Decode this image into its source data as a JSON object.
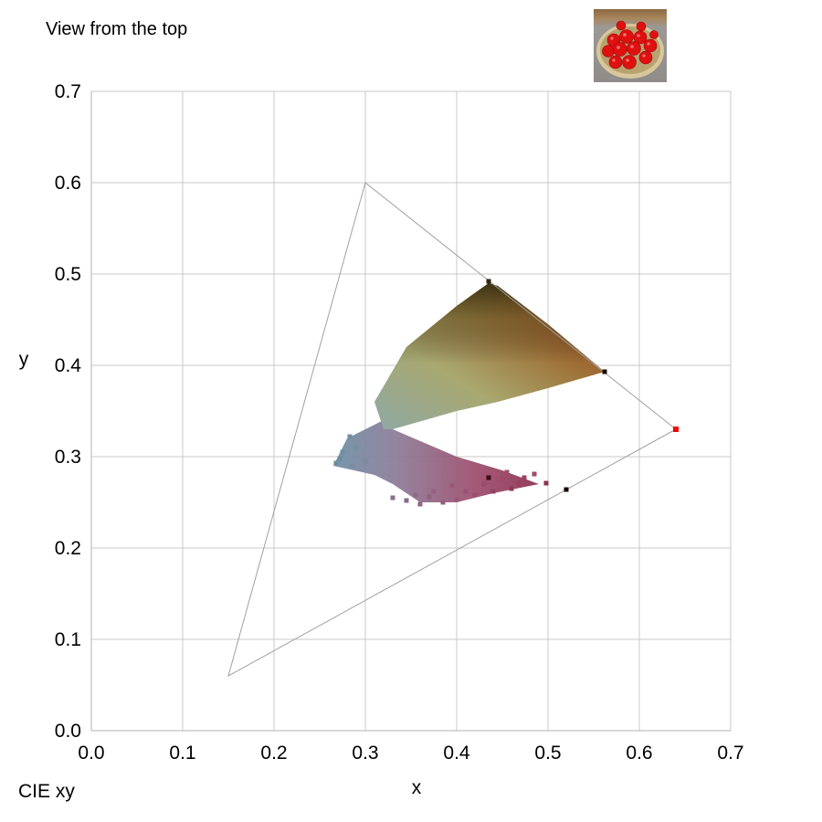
{
  "captions": {
    "view": "View from the top",
    "space": "CIE xy"
  },
  "thumbnail": {
    "icon": "strawberry-tart-thumbnail",
    "colors": {
      "background": "#8f8c89",
      "crust": "#c9b58a",
      "berry": "#e01010",
      "highlight": "#ff8a8a"
    }
  },
  "chart_data": {
    "type": "scatter",
    "title": "",
    "xlabel": "x",
    "ylabel": "y",
    "xlim": [
      0.0,
      0.7
    ],
    "ylim": [
      0.0,
      0.7
    ],
    "xticks": [
      "0.0",
      "0.1",
      "0.2",
      "0.3",
      "0.4",
      "0.5",
      "0.6",
      "0.7"
    ],
    "yticks": [
      "0.0",
      "0.1",
      "0.2",
      "0.3",
      "0.4",
      "0.5",
      "0.6",
      "0.7"
    ],
    "grid": true,
    "gamut_triangle": [
      [
        0.64,
        0.33
      ],
      [
        0.3,
        0.6
      ],
      [
        0.15,
        0.06
      ]
    ],
    "red_primary_marker": {
      "x": 0.64,
      "y": 0.33,
      "color": "#ff0000"
    },
    "upper_region_polygon": [
      [
        0.32,
        0.33
      ],
      [
        0.31,
        0.36
      ],
      [
        0.345,
        0.42
      ],
      [
        0.4,
        0.465
      ],
      [
        0.435,
        0.49
      ],
      [
        0.445,
        0.487
      ],
      [
        0.5,
        0.445
      ],
      [
        0.562,
        0.393
      ],
      [
        0.5,
        0.375
      ],
      [
        0.445,
        0.36
      ],
      [
        0.4,
        0.35
      ],
      [
        0.33,
        0.33
      ]
    ],
    "lower_region_polygon": [
      [
        0.32,
        0.34
      ],
      [
        0.3,
        0.33
      ],
      [
        0.28,
        0.32
      ],
      [
        0.265,
        0.29
      ],
      [
        0.31,
        0.28
      ],
      [
        0.33,
        0.27
      ],
      [
        0.36,
        0.25
      ],
      [
        0.4,
        0.25
      ],
      [
        0.44,
        0.26
      ],
      [
        0.49,
        0.27
      ],
      [
        0.45,
        0.285
      ],
      [
        0.4,
        0.3
      ],
      [
        0.33,
        0.33
      ]
    ],
    "points": [
      {
        "x": 0.562,
        "y": 0.393,
        "color": "#1a0a00"
      },
      {
        "x": 0.435,
        "y": 0.492,
        "color": "#2a2610"
      },
      {
        "x": 0.52,
        "y": 0.264,
        "color": "#1a0508"
      },
      {
        "x": 0.435,
        "y": 0.277,
        "color": "#3a0a18"
      },
      {
        "x": 0.498,
        "y": 0.271,
        "color": "#8a3050"
      },
      {
        "x": 0.474,
        "y": 0.277,
        "color": "#9a4060"
      },
      {
        "x": 0.485,
        "y": 0.281,
        "color": "#a44868"
      },
      {
        "x": 0.46,
        "y": 0.265,
        "color": "#8a3a58"
      },
      {
        "x": 0.44,
        "y": 0.262,
        "color": "#904262"
      },
      {
        "x": 0.42,
        "y": 0.258,
        "color": "#9a5070"
      },
      {
        "x": 0.4,
        "y": 0.253,
        "color": "#985875"
      },
      {
        "x": 0.385,
        "y": 0.25,
        "color": "#946080"
      },
      {
        "x": 0.36,
        "y": 0.248,
        "color": "#8e6682"
      },
      {
        "x": 0.345,
        "y": 0.252,
        "color": "#8a6a86"
      },
      {
        "x": 0.33,
        "y": 0.255,
        "color": "#8a708a"
      },
      {
        "x": 0.37,
        "y": 0.256,
        "color": "#906080"
      },
      {
        "x": 0.41,
        "y": 0.262,
        "color": "#9a5070"
      },
      {
        "x": 0.455,
        "y": 0.283,
        "color": "#a44a68"
      },
      {
        "x": 0.43,
        "y": 0.27,
        "color": "#9a4a6a"
      },
      {
        "x": 0.468,
        "y": 0.271,
        "color": "#9a3e60"
      },
      {
        "x": 0.45,
        "y": 0.276,
        "color": "#a24666"
      },
      {
        "x": 0.395,
        "y": 0.268,
        "color": "#9c5676"
      },
      {
        "x": 0.375,
        "y": 0.262,
        "color": "#96607e"
      },
      {
        "x": 0.355,
        "y": 0.258,
        "color": "#8c6a86"
      },
      {
        "x": 0.268,
        "y": 0.293,
        "color": "#6a8ca0"
      },
      {
        "x": 0.275,
        "y": 0.305,
        "color": "#6c8ea2"
      },
      {
        "x": 0.283,
        "y": 0.322,
        "color": "#70909e"
      },
      {
        "x": 0.272,
        "y": 0.298,
        "color": "#6a8a9e"
      },
      {
        "x": 0.285,
        "y": 0.29,
        "color": "#7a8ca0"
      },
      {
        "x": 0.3,
        "y": 0.295,
        "color": "#80889c"
      },
      {
        "x": 0.29,
        "y": 0.31,
        "color": "#7690a0"
      }
    ]
  }
}
